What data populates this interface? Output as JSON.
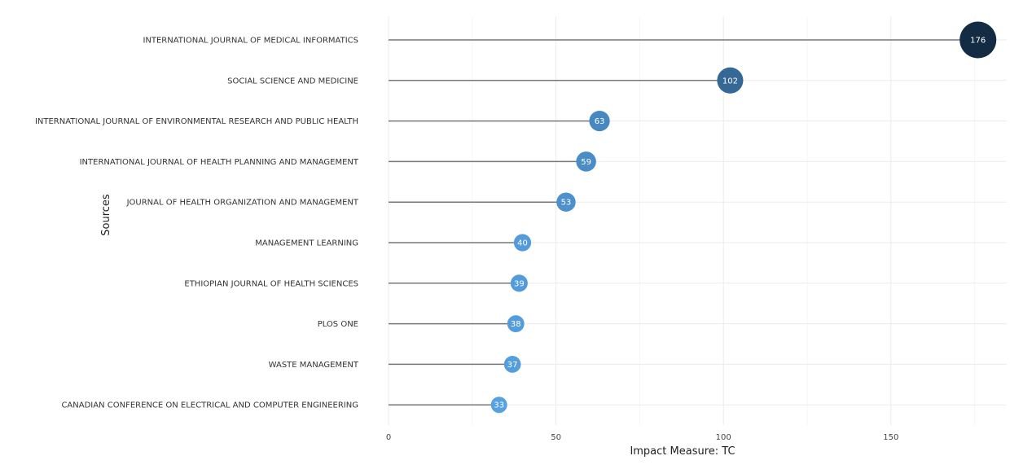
{
  "chart_data": {
    "type": "lollipop",
    "title": "",
    "xlabel": "Impact Measure: TC",
    "ylabel": "Sources",
    "xlim": [
      0,
      185
    ],
    "xticks": [
      0,
      50,
      100,
      150
    ],
    "grid": true,
    "categories": [
      "INTERNATIONAL JOURNAL OF MEDICAL INFORMATICS",
      "SOCIAL SCIENCE AND MEDICINE",
      "INTERNATIONAL JOURNAL OF ENVIRONMENTAL RESEARCH AND PUBLIC HEALTH",
      "INTERNATIONAL JOURNAL OF HEALTH PLANNING AND MANAGEMENT",
      "JOURNAL OF HEALTH ORGANIZATION AND MANAGEMENT",
      "MANAGEMENT LEARNING",
      "ETHIOPIAN JOURNAL OF HEALTH SCIENCES",
      "PLOS ONE",
      "WASTE MANAGEMENT",
      "CANADIAN CONFERENCE ON ELECTRICAL AND COMPUTER ENGINEERING"
    ],
    "values": [
      176,
      102,
      63,
      59,
      53,
      40,
      39,
      38,
      37,
      33
    ],
    "colors": {
      "low": "#56a1e2",
      "high": "#132b43",
      "stem": "#777777",
      "grid": "#ebebeb"
    }
  }
}
